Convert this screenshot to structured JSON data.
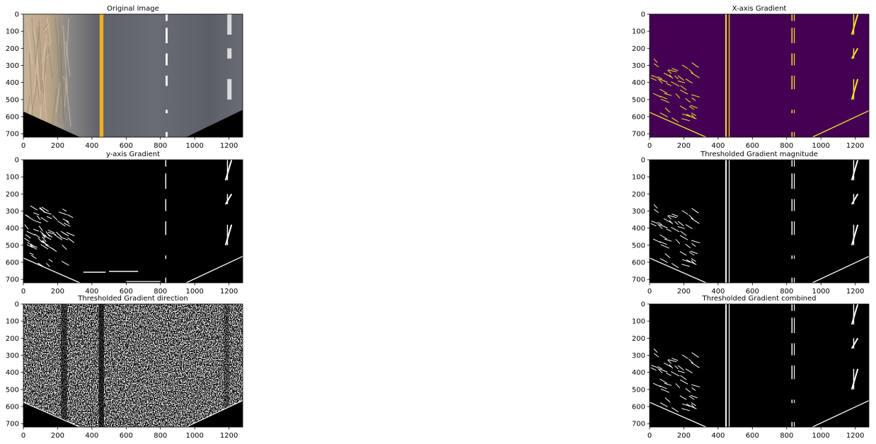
{
  "figure": {
    "panels": [
      {
        "title": "Original Image",
        "style": "photo"
      },
      {
        "title": "X-axis Gradient",
        "style": "viridis"
      },
      {
        "title": "y-axis Gradient",
        "style": "binary"
      },
      {
        "title": "Thresholded Gradient magnitude",
        "style": "binary"
      },
      {
        "title": "Thresholded Gradient direction",
        "style": "noise"
      },
      {
        "title": "Thresholded Gradient combined",
        "style": "binary"
      }
    ],
    "x_ticks": [
      "0",
      "200",
      "400",
      "600",
      "800",
      "1000",
      "1200"
    ],
    "y_ticks": [
      "0",
      "100",
      "200",
      "300",
      "400",
      "500",
      "600",
      "700"
    ],
    "x_range": [
      0,
      1280
    ],
    "y_range": [
      0,
      720
    ],
    "colors": {
      "viridis_background": "#440154",
      "viridis_highlight": "#fde725",
      "binary_background": "#000000",
      "binary_highlight": "#ffffff",
      "yellow_lane": "#f0b020",
      "road_gray": "#6e7078"
    }
  }
}
